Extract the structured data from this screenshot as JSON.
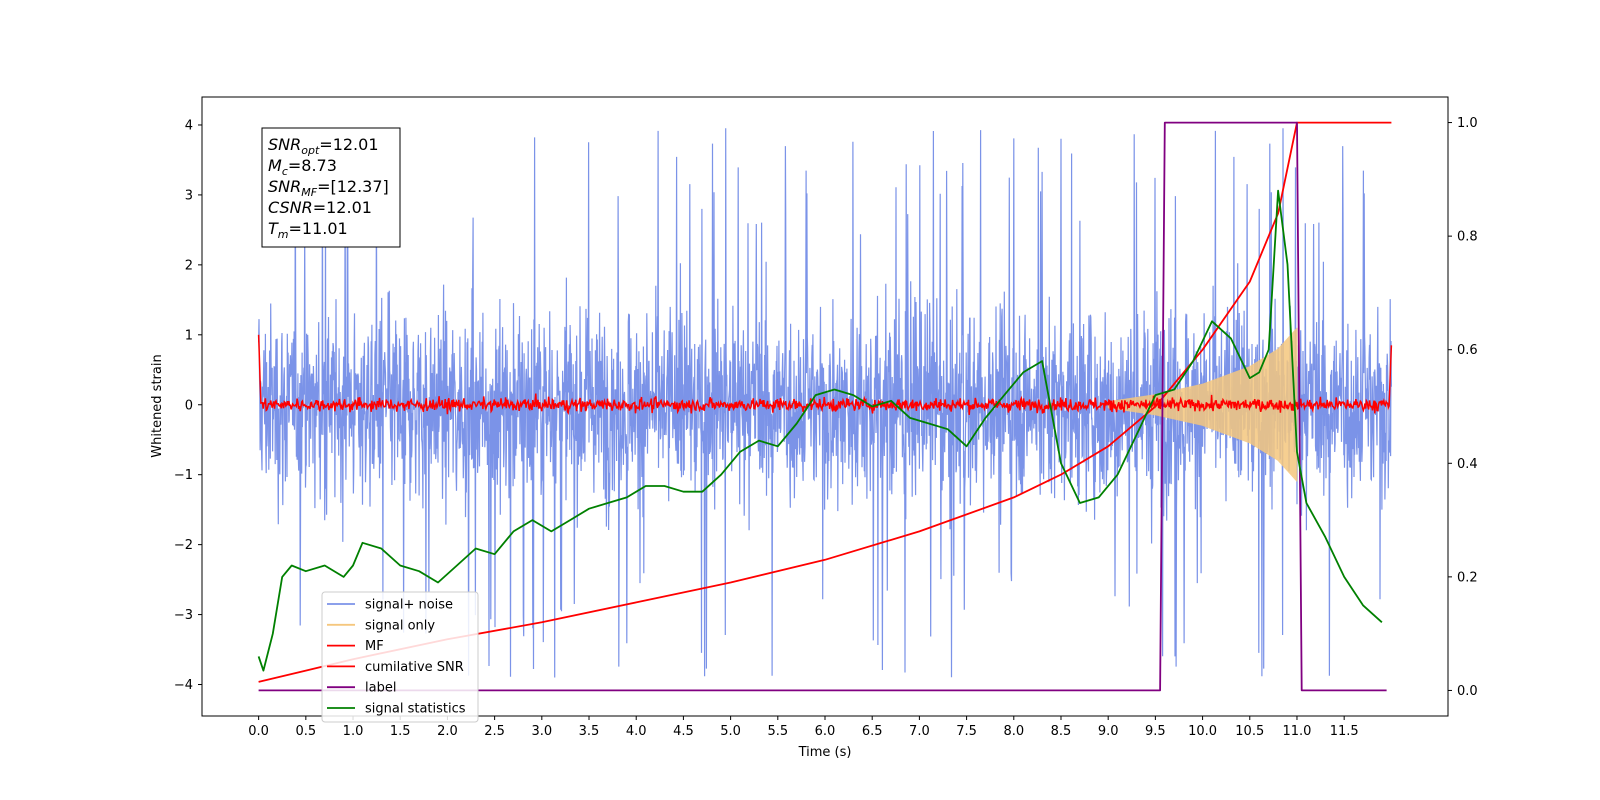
{
  "chart_data": {
    "type": "line",
    "xlabel": "Time (s)",
    "ylabel": "Whitened strain",
    "xlim": [
      -0.6,
      12.6
    ],
    "ylim": [
      -4.45,
      4.4
    ],
    "y2lim": [
      -0.045,
      1.045
    ],
    "x_ticks": [
      "0.0",
      "0.5",
      "1.0",
      "1.5",
      "2.0",
      "2.5",
      "3.0",
      "3.5",
      "4.0",
      "4.5",
      "5.0",
      "5.5",
      "6.0",
      "6.5",
      "7.0",
      "7.5",
      "8.0",
      "8.5",
      "9.0",
      "9.5",
      "10.0",
      "10.5",
      "11.0",
      "11.5"
    ],
    "y_ticks": [
      "4",
      "3",
      "2",
      "1",
      "0",
      "−1",
      "−2",
      "−3",
      "−4"
    ],
    "y2_ticks": [
      "1.0",
      "0.8",
      "0.6",
      "0.4",
      "0.2",
      "0.0"
    ],
    "grid": false,
    "legend_position": "lower-left",
    "stats_box": {
      "lines": [
        {
          "sym": "SNR",
          "sub": "opt",
          "val": "=12.01"
        },
        {
          "sym": "M",
          "sub": "c",
          "val": "=8.73"
        },
        {
          "sym": "SNR",
          "sub": "MF",
          "val": "=[12.37]"
        },
        {
          "sym": "CSNR",
          "sub": "",
          "val": "=12.01"
        },
        {
          "sym": "T",
          "sub": "m",
          "val": "=11.01"
        }
      ]
    },
    "series": [
      {
        "name": "signal+ noise",
        "color": "#7b93e8",
        "axis": "left",
        "x_range": [
          0.0,
          12.0
        ],
        "noise_band": [
          -2.2,
          2.3
        ],
        "peak_range": [
          -3.9,
          4.0
        ]
      },
      {
        "name": "signal only",
        "color": "#f5c77e",
        "axis": "left",
        "x_range": [
          9.0,
          11.0
        ],
        "envelope": [
          [
            9.0,
            0.05
          ],
          [
            9.5,
            0.15
          ],
          [
            10.0,
            0.3
          ],
          [
            10.5,
            0.55
          ],
          [
            10.8,
            0.8
          ],
          [
            11.0,
            1.1
          ]
        ]
      },
      {
        "name": "MF",
        "color": "#ff0000",
        "axis": "left",
        "x_range": [
          0.0,
          12.0
        ],
        "level": 0.0,
        "spread": 0.12
      },
      {
        "name": "cumilative SNR",
        "color": "#ff0000",
        "axis": "right",
        "x": [
          0.0,
          0.5,
          1.0,
          2.0,
          3.0,
          4.0,
          5.0,
          6.0,
          7.0,
          8.0,
          8.5,
          9.0,
          9.5,
          10.0,
          10.5,
          10.8,
          11.0,
          11.5,
          12.0
        ],
        "y": [
          0.015,
          0.035,
          0.055,
          0.09,
          0.12,
          0.155,
          0.19,
          0.23,
          0.28,
          0.34,
          0.38,
          0.43,
          0.5,
          0.6,
          0.72,
          0.84,
          1.0,
          1.0,
          1.0
        ]
      },
      {
        "name": "label",
        "color": "#800080",
        "axis": "right",
        "x": [
          0.0,
          9.55,
          9.6,
          11.0,
          11.05,
          11.95
        ],
        "y": [
          0.0,
          0.0,
          1.0,
          1.0,
          0.0,
          0.0
        ]
      },
      {
        "name": "signal statistics",
        "color": "#008000",
        "axis": "right",
        "x": [
          0.0,
          0.05,
          0.15,
          0.25,
          0.35,
          0.5,
          0.7,
          0.9,
          1.0,
          1.1,
          1.3,
          1.5,
          1.7,
          1.9,
          2.1,
          2.3,
          2.5,
          2.7,
          2.9,
          3.1,
          3.3,
          3.5,
          3.7,
          3.9,
          4.1,
          4.3,
          4.5,
          4.7,
          4.9,
          5.1,
          5.3,
          5.5,
          5.7,
          5.9,
          6.1,
          6.3,
          6.5,
          6.7,
          6.9,
          7.1,
          7.3,
          7.5,
          7.7,
          7.9,
          8.1,
          8.3,
          8.5,
          8.7,
          8.9,
          9.1,
          9.3,
          9.5,
          9.7,
          9.9,
          10.1,
          10.3,
          10.5,
          10.6,
          10.7,
          10.8,
          10.9,
          11.0,
          11.1,
          11.3,
          11.5,
          11.7,
          11.9
        ],
        "y": [
          0.06,
          0.035,
          0.1,
          0.2,
          0.22,
          0.21,
          0.22,
          0.2,
          0.22,
          0.26,
          0.25,
          0.22,
          0.21,
          0.19,
          0.22,
          0.25,
          0.24,
          0.28,
          0.3,
          0.28,
          0.3,
          0.32,
          0.33,
          0.34,
          0.36,
          0.36,
          0.35,
          0.35,
          0.38,
          0.42,
          0.44,
          0.43,
          0.47,
          0.52,
          0.53,
          0.52,
          0.5,
          0.51,
          0.48,
          0.47,
          0.46,
          0.43,
          0.48,
          0.52,
          0.56,
          0.58,
          0.4,
          0.33,
          0.34,
          0.38,
          0.45,
          0.52,
          0.53,
          0.58,
          0.65,
          0.62,
          0.55,
          0.56,
          0.6,
          0.88,
          0.75,
          0.42,
          0.33,
          0.27,
          0.2,
          0.15,
          0.12
        ]
      }
    ]
  }
}
